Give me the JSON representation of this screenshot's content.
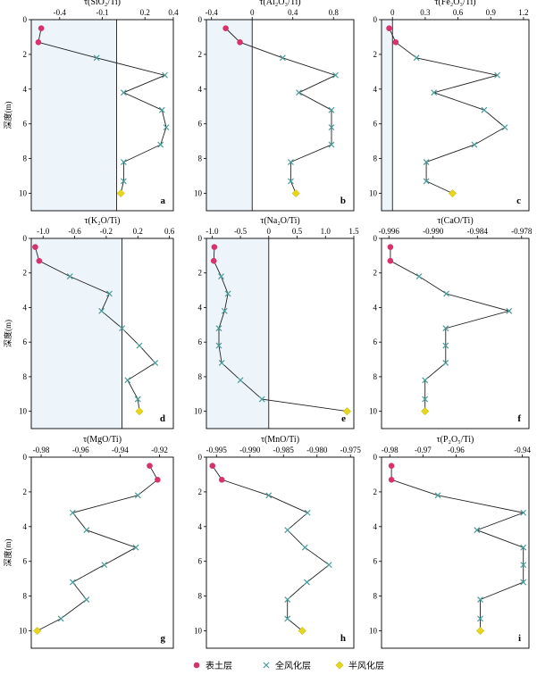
{
  "colors": {
    "topsoil": "#d6336c",
    "full": "#4a9a98",
    "semi": "#e6d71a",
    "shade": "#eef5fa",
    "line": "#222222"
  },
  "legend": [
    {
      "label": "表土层",
      "marker": "circle",
      "color": "#d6336c"
    },
    {
      "label": "全风化层",
      "marker": "cross",
      "color": "#4a9a98"
    },
    {
      "label": "半风化层",
      "marker": "diamond",
      "color": "#e6d71a"
    }
  ],
  "chart_data": [
    {
      "type": "line",
      "letter": "a",
      "title": "τ(SiO₂/Ti)",
      "ylabel": "深度(m)",
      "xlim": [
        -0.6,
        0.4
      ],
      "xticks": [
        "-0.4",
        "-0.1",
        "0.2",
        "0.4"
      ],
      "xtick_values": [
        -0.4,
        -0.1,
        0.2,
        0.4
      ],
      "ylim": [
        0,
        11
      ],
      "yticks": [
        "0",
        "2",
        "4",
        "6",
        "8",
        "10"
      ],
      "ytick_values": [
        0,
        2,
        4,
        6,
        8,
        10
      ],
      "zero_line": 0,
      "points": [
        {
          "x": -0.53,
          "y": 0.5,
          "layer": "topsoil"
        },
        {
          "x": -0.55,
          "y": 1.3,
          "layer": "topsoil"
        },
        {
          "x": -0.14,
          "y": 2.2,
          "layer": "full"
        },
        {
          "x": 0.34,
          "y": 3.2,
          "layer": "full"
        },
        {
          "x": 0.05,
          "y": 4.2,
          "layer": "full"
        },
        {
          "x": 0.32,
          "y": 5.2,
          "layer": "full"
        },
        {
          "x": 0.35,
          "y": 6.2,
          "layer": "full"
        },
        {
          "x": 0.31,
          "y": 7.2,
          "layer": "full"
        },
        {
          "x": 0.05,
          "y": 8.2,
          "layer": "full"
        },
        {
          "x": 0.05,
          "y": 9.3,
          "layer": "full"
        },
        {
          "x": 0.03,
          "y": 10.0,
          "layer": "semi"
        }
      ]
    },
    {
      "type": "line",
      "letter": "b",
      "title": "τ(Al₂O₃/Ti)",
      "ylabel": "",
      "xlim": [
        -0.45,
        1.0
      ],
      "xticks": [
        "-0.4",
        "0",
        "0.4",
        "0.8"
      ],
      "xtick_values": [
        -0.4,
        0,
        0.4,
        0.8
      ],
      "ylim": [
        0,
        11
      ],
      "yticks": [
        "0",
        "2",
        "4",
        "6",
        "8",
        "10"
      ],
      "ytick_values": [
        0,
        2,
        4,
        6,
        8,
        10
      ],
      "zero_line": 0,
      "points": [
        {
          "x": -0.26,
          "y": 0.5,
          "layer": "topsoil"
        },
        {
          "x": -0.12,
          "y": 1.3,
          "layer": "topsoil"
        },
        {
          "x": 0.3,
          "y": 2.2,
          "layer": "full"
        },
        {
          "x": 0.82,
          "y": 3.2,
          "layer": "full"
        },
        {
          "x": 0.46,
          "y": 4.2,
          "layer": "full"
        },
        {
          "x": 0.78,
          "y": 5.2,
          "layer": "full"
        },
        {
          "x": 0.78,
          "y": 6.2,
          "layer": "full"
        },
        {
          "x": 0.78,
          "y": 7.2,
          "layer": "full"
        },
        {
          "x": 0.38,
          "y": 8.2,
          "layer": "full"
        },
        {
          "x": 0.38,
          "y": 9.3,
          "layer": "full"
        },
        {
          "x": 0.43,
          "y": 10.0,
          "layer": "semi"
        }
      ]
    },
    {
      "type": "line",
      "letter": "c",
      "title": "τ(Fe₂O₃/Ti)",
      "ylabel": "",
      "xlim": [
        -0.1,
        1.25
      ],
      "xticks": [
        "0",
        "0.3",
        "0.6",
        "0.9",
        "1.2"
      ],
      "xtick_values": [
        0,
        0.3,
        0.6,
        0.9,
        1.2
      ],
      "ylim": [
        0,
        11
      ],
      "yticks": [
        "0",
        "2",
        "4",
        "6",
        "8",
        "10"
      ],
      "ytick_values": [
        0,
        2,
        4,
        6,
        8,
        10
      ],
      "zero_line": 0,
      "points": [
        {
          "x": -0.03,
          "y": 0.5,
          "layer": "topsoil"
        },
        {
          "x": 0.03,
          "y": 1.3,
          "layer": "topsoil"
        },
        {
          "x": 0.22,
          "y": 2.2,
          "layer": "full"
        },
        {
          "x": 0.96,
          "y": 3.2,
          "layer": "full"
        },
        {
          "x": 0.38,
          "y": 4.2,
          "layer": "full"
        },
        {
          "x": 0.84,
          "y": 5.2,
          "layer": "full"
        },
        {
          "x": 1.03,
          "y": 6.2,
          "layer": "full"
        },
        {
          "x": 0.75,
          "y": 7.2,
          "layer": "full"
        },
        {
          "x": 0.31,
          "y": 8.2,
          "layer": "full"
        },
        {
          "x": 0.31,
          "y": 9.3,
          "layer": "full"
        },
        {
          "x": 0.55,
          "y": 10.0,
          "layer": "semi"
        }
      ]
    },
    {
      "type": "line",
      "letter": "d",
      "title": "τ(K₂O/Ti)",
      "ylabel": "深度(m)",
      "xlim": [
        -1.15,
        0.65
      ],
      "xticks": [
        "-1.0",
        "-0.6",
        "-0.2",
        "0.2",
        "0.6"
      ],
      "xtick_values": [
        -1.0,
        -0.6,
        -0.2,
        0.2,
        0.6
      ],
      "ylim": [
        0,
        11
      ],
      "yticks": [
        "0",
        "2",
        "4",
        "6",
        "8",
        "10"
      ],
      "ytick_values": [
        0,
        2,
        4,
        6,
        8,
        10
      ],
      "zero_line": 0,
      "points": [
        {
          "x": -1.1,
          "y": 0.5,
          "layer": "topsoil"
        },
        {
          "x": -1.05,
          "y": 1.3,
          "layer": "topsoil"
        },
        {
          "x": -0.66,
          "y": 2.2,
          "layer": "full"
        },
        {
          "x": -0.16,
          "y": 3.2,
          "layer": "full"
        },
        {
          "x": -0.26,
          "y": 4.2,
          "layer": "full"
        },
        {
          "x": 0.0,
          "y": 5.2,
          "layer": "full"
        },
        {
          "x": 0.22,
          "y": 6.2,
          "layer": "full"
        },
        {
          "x": 0.42,
          "y": 7.2,
          "layer": "full"
        },
        {
          "x": 0.07,
          "y": 8.2,
          "layer": "full"
        },
        {
          "x": 0.2,
          "y": 9.3,
          "layer": "full"
        },
        {
          "x": 0.22,
          "y": 10.0,
          "layer": "semi"
        }
      ]
    },
    {
      "type": "line",
      "letter": "e",
      "title": "τ(Na₂O/Ti)",
      "ylabel": "",
      "xlim": [
        -1.1,
        1.5
      ],
      "xticks": [
        "-1.0",
        "-0.5",
        "0",
        "0.5",
        "1.0",
        "1.5"
      ],
      "xtick_values": [
        -1.0,
        -0.5,
        0,
        0.5,
        1.0,
        1.5
      ],
      "ylim": [
        0,
        11
      ],
      "yticks": [
        "0",
        "2",
        "4",
        "6",
        "8",
        "10"
      ],
      "ytick_values": [
        0,
        2,
        4,
        6,
        8,
        10
      ],
      "zero_line": 0,
      "points": [
        {
          "x": -0.96,
          "y": 0.5,
          "layer": "topsoil"
        },
        {
          "x": -0.97,
          "y": 1.3,
          "layer": "topsoil"
        },
        {
          "x": -0.84,
          "y": 2.2,
          "layer": "full"
        },
        {
          "x": -0.72,
          "y": 3.2,
          "layer": "full"
        },
        {
          "x": -0.78,
          "y": 4.2,
          "layer": "full"
        },
        {
          "x": -0.88,
          "y": 5.2,
          "layer": "full"
        },
        {
          "x": -0.88,
          "y": 6.2,
          "layer": "full"
        },
        {
          "x": -0.83,
          "y": 7.2,
          "layer": "full"
        },
        {
          "x": -0.5,
          "y": 8.2,
          "layer": "full"
        },
        {
          "x": -0.12,
          "y": 9.3,
          "layer": "full"
        },
        {
          "x": 1.38,
          "y": 10.0,
          "layer": "semi"
        }
      ]
    },
    {
      "type": "line",
      "letter": "f",
      "title": "τ(CaO/Ti)",
      "ylabel": "",
      "xlim": [
        -0.997,
        -0.977
      ],
      "xticks": [
        "-0.996",
        "-0.990",
        "-0.984",
        "-0.978"
      ],
      "xtick_values": [
        -0.996,
        -0.99,
        -0.984,
        -0.978
      ],
      "ylim": [
        0,
        11
      ],
      "yticks": [
        "0",
        "2",
        "4",
        "6",
        "8",
        "10"
      ],
      "ytick_values": [
        0,
        2,
        4,
        6,
        8,
        10
      ],
      "zero_line": null,
      "points": [
        {
          "x": -0.9958,
          "y": 0.5,
          "layer": "topsoil"
        },
        {
          "x": -0.9958,
          "y": 1.3,
          "layer": "topsoil"
        },
        {
          "x": -0.9919,
          "y": 2.2,
          "layer": "full"
        },
        {
          "x": -0.9882,
          "y": 3.2,
          "layer": "full"
        },
        {
          "x": -0.9797,
          "y": 4.2,
          "layer": "full"
        },
        {
          "x": -0.9883,
          "y": 5.2,
          "layer": "full"
        },
        {
          "x": -0.9883,
          "y": 6.2,
          "layer": "full"
        },
        {
          "x": -0.9883,
          "y": 7.2,
          "layer": "full"
        },
        {
          "x": -0.9911,
          "y": 8.2,
          "layer": "full"
        },
        {
          "x": -0.9911,
          "y": 9.3,
          "layer": "full"
        },
        {
          "x": -0.9911,
          "y": 10.0,
          "layer": "semi"
        }
      ]
    },
    {
      "type": "line",
      "letter": "g",
      "title": "τ(MgO/Ti)",
      "ylabel": "深度(m)",
      "xlim": [
        -0.985,
        -0.913
      ],
      "xticks": [
        "-0.98",
        "-0.96",
        "-0.94",
        "-0.92"
      ],
      "xtick_values": [
        -0.98,
        -0.96,
        -0.94,
        -0.92
      ],
      "ylim": [
        0,
        11
      ],
      "yticks": [
        "0",
        "2",
        "4",
        "6",
        "8",
        "10"
      ],
      "ytick_values": [
        0,
        2,
        4,
        6,
        8,
        10
      ],
      "zero_line": null,
      "points": [
        {
          "x": -0.925,
          "y": 0.5,
          "layer": "topsoil"
        },
        {
          "x": -0.921,
          "y": 1.3,
          "layer": "topsoil"
        },
        {
          "x": -0.931,
          "y": 2.2,
          "layer": "full"
        },
        {
          "x": -0.964,
          "y": 3.2,
          "layer": "full"
        },
        {
          "x": -0.957,
          "y": 4.2,
          "layer": "full"
        },
        {
          "x": -0.932,
          "y": 5.2,
          "layer": "full"
        },
        {
          "x": -0.948,
          "y": 6.2,
          "layer": "full"
        },
        {
          "x": -0.964,
          "y": 7.2,
          "layer": "full"
        },
        {
          "x": -0.957,
          "y": 8.2,
          "layer": "full"
        },
        {
          "x": -0.97,
          "y": 9.3,
          "layer": "full"
        },
        {
          "x": -0.982,
          "y": 10.0,
          "layer": "semi"
        }
      ]
    },
    {
      "type": "line",
      "letter": "h",
      "title": "τ(MnO/Ti)",
      "ylabel": "",
      "xlim": [
        -0.9965,
        -0.9745
      ],
      "xticks": [
        "-0.995",
        "-0.990",
        "-0.985",
        "-0.980",
        "-0.975"
      ],
      "xtick_values": [
        -0.995,
        -0.99,
        -0.985,
        -0.98,
        -0.975
      ],
      "ylim": [
        0,
        11
      ],
      "yticks": [
        "0",
        "2",
        "4",
        "6",
        "8",
        "10"
      ],
      "ytick_values": [
        0,
        2,
        4,
        6,
        8,
        10
      ],
      "zero_line": null,
      "points": [
        {
          "x": -0.9956,
          "y": 0.5,
          "layer": "topsoil"
        },
        {
          "x": -0.9942,
          "y": 1.3,
          "layer": "topsoil"
        },
        {
          "x": -0.9872,
          "y": 2.2,
          "layer": "full"
        },
        {
          "x": -0.9814,
          "y": 3.2,
          "layer": "full"
        },
        {
          "x": -0.9844,
          "y": 4.2,
          "layer": "full"
        },
        {
          "x": -0.9818,
          "y": 5.2,
          "layer": "full"
        },
        {
          "x": -0.9782,
          "y": 6.2,
          "layer": "full"
        },
        {
          "x": -0.9815,
          "y": 7.2,
          "layer": "full"
        },
        {
          "x": -0.9844,
          "y": 8.2,
          "layer": "full"
        },
        {
          "x": -0.9844,
          "y": 9.3,
          "layer": "full"
        },
        {
          "x": -0.9822,
          "y": 10.0,
          "layer": "semi"
        }
      ]
    },
    {
      "type": "line",
      "letter": "i",
      "title": "τ(P₂O₅/Ti)",
      "ylabel": "",
      "xlim": [
        -0.9825,
        -0.938
      ],
      "xticks": [
        "-0.98",
        "-0.97",
        "-0.96",
        "-0.94"
      ],
      "xtick_values": [
        -0.98,
        -0.97,
        -0.96,
        -0.94
      ],
      "ylim": [
        0,
        11
      ],
      "yticks": [
        "0",
        "2",
        "4",
        "6",
        "8",
        "10"
      ],
      "ytick_values": [
        0,
        2,
        4,
        6,
        8,
        10
      ],
      "zero_line": null,
      "points": [
        {
          "x": -0.9795,
          "y": 0.5,
          "layer": "topsoil"
        },
        {
          "x": -0.9795,
          "y": 1.3,
          "layer": "topsoil"
        },
        {
          "x": -0.9655,
          "y": 2.2,
          "layer": "full"
        },
        {
          "x": -0.9397,
          "y": 3.2,
          "layer": "full"
        },
        {
          "x": -0.9537,
          "y": 4.2,
          "layer": "full"
        },
        {
          "x": -0.9397,
          "y": 5.2,
          "layer": "full"
        },
        {
          "x": -0.9397,
          "y": 6.2,
          "layer": "full"
        },
        {
          "x": -0.9397,
          "y": 7.2,
          "layer": "full"
        },
        {
          "x": -0.9527,
          "y": 8.2,
          "layer": "full"
        },
        {
          "x": -0.9527,
          "y": 9.3,
          "layer": "full"
        },
        {
          "x": -0.9527,
          "y": 10.0,
          "layer": "semi"
        }
      ]
    }
  ]
}
